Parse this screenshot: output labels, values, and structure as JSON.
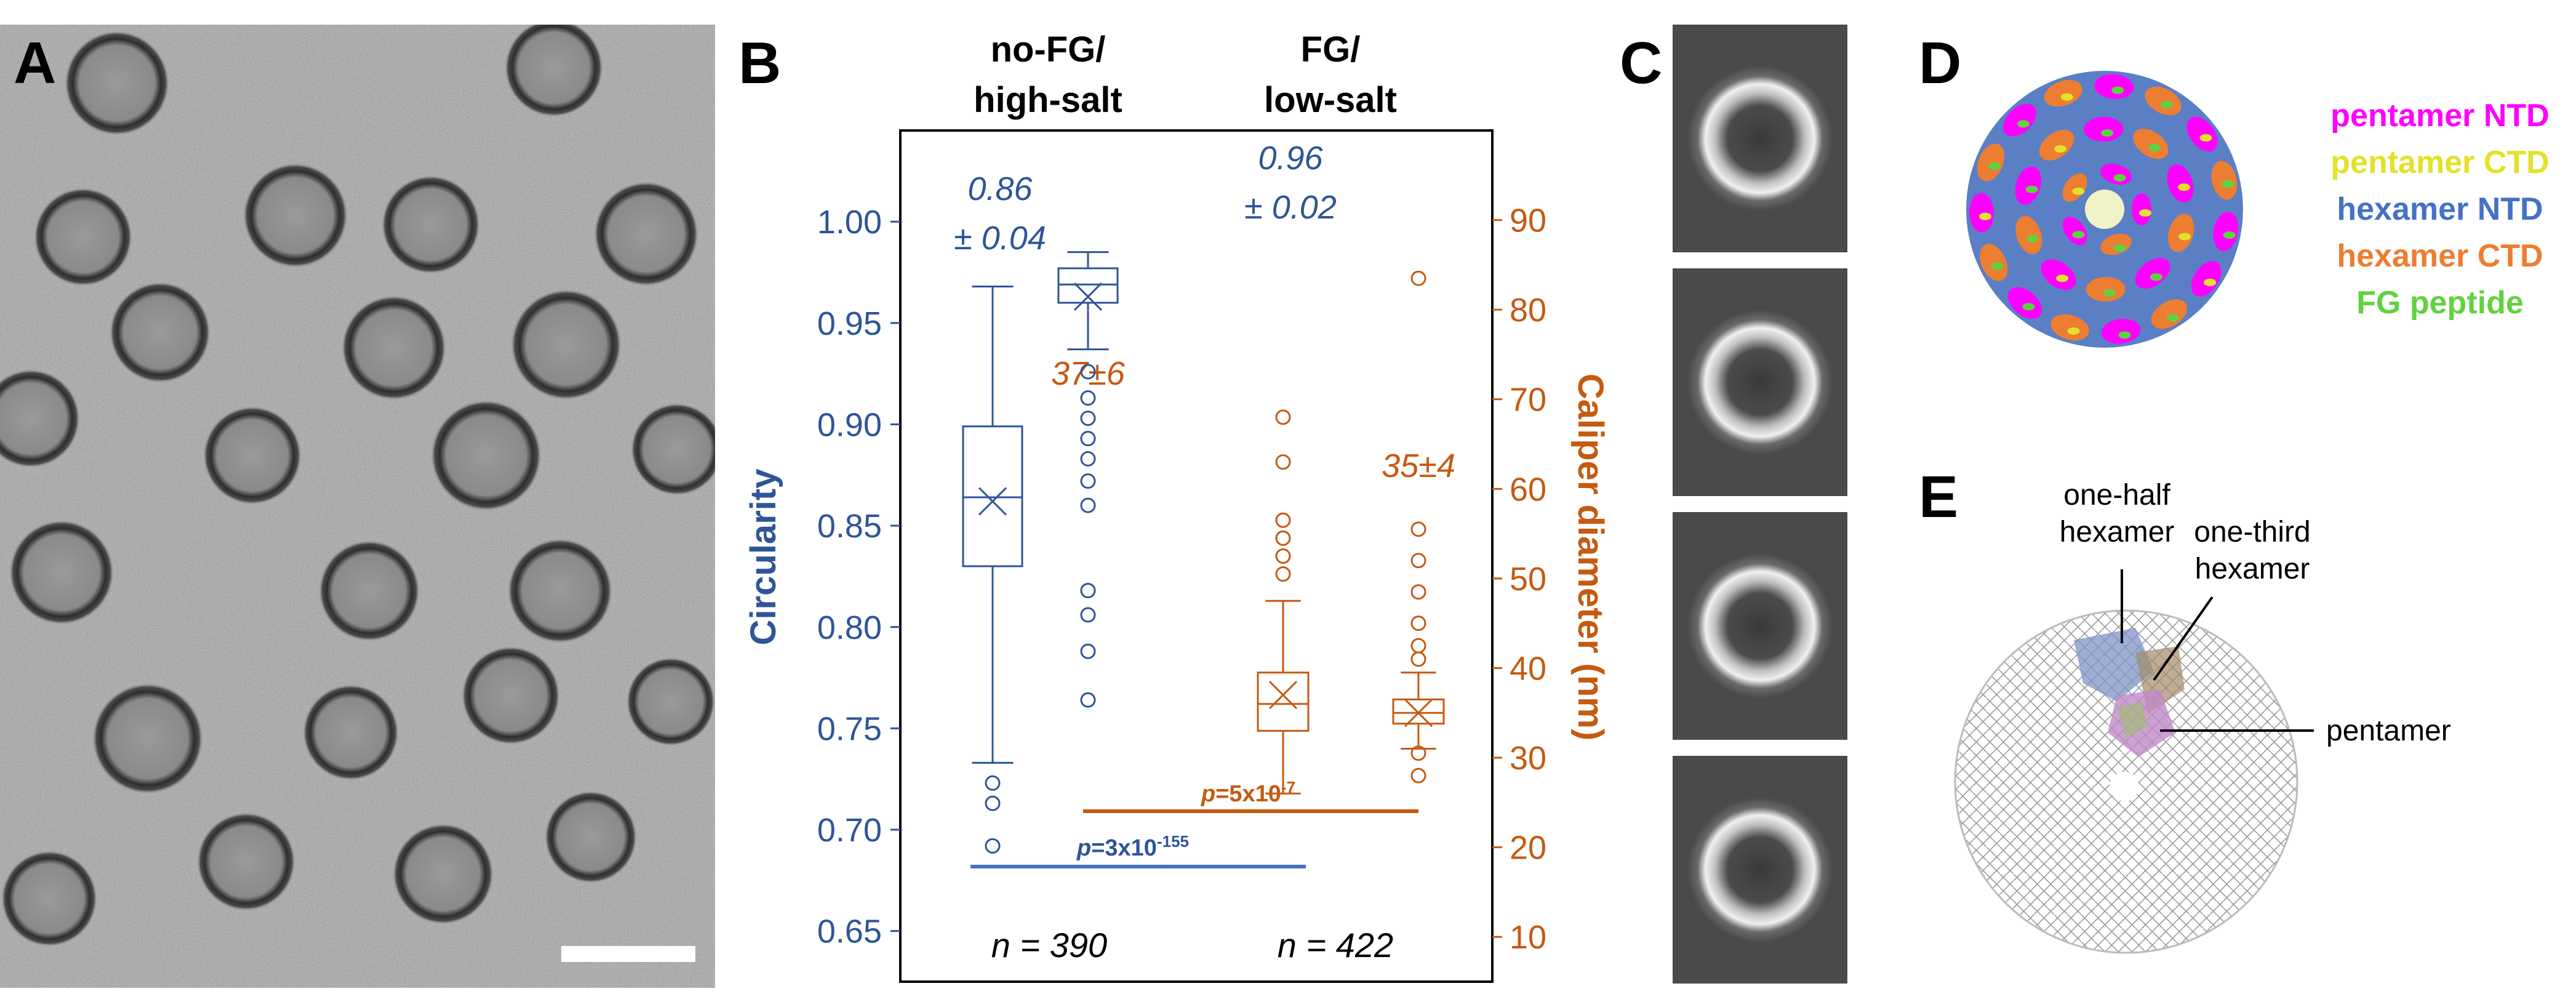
{
  "panels": {
    "a": "A",
    "b": "B",
    "c": "C",
    "d": "D",
    "e": "E"
  },
  "chart_data": {
    "type": "box",
    "groups": [
      "no-FG/\nhigh-salt",
      "FG/\nlow-salt"
    ],
    "group_titles": [
      [
        "no-FG/",
        "high-salt"
      ],
      [
        "FG/",
        "low-salt"
      ]
    ],
    "left_axis": {
      "label": "Circularity",
      "ylim": [
        0.625,
        1.045
      ],
      "ticks": [
        1.0,
        0.95,
        0.9,
        0.85,
        0.8,
        0.75,
        0.7,
        0.65
      ],
      "tick_labels": [
        "1.00",
        "0.95",
        "0.90",
        "0.85",
        "0.80",
        "0.75",
        "0.70",
        "0.65"
      ]
    },
    "right_axis": {
      "label": "Caliper diameter (nm)",
      "ylim": [
        5,
        100
      ],
      "ticks": [
        90,
        80,
        70,
        60,
        50,
        40,
        30,
        20,
        10
      ],
      "tick_labels": [
        "90",
        "80",
        "70",
        "60",
        "50",
        "40",
        "30",
        "20",
        "10"
      ]
    },
    "series": [
      {
        "name": "circularity no-FG/high-salt",
        "axis": "left",
        "color": "#2e5597",
        "whisker_low": 0.733,
        "q1": 0.83,
        "median": 0.864,
        "q3": 0.899,
        "whisker_high": 0.968,
        "mean": 0.862,
        "outliers": [
          0.723,
          0.713,
          0.692
        ],
        "label": [
          "0.86",
          "± 0.04"
        ]
      },
      {
        "name": "circularity FG/low-salt",
        "axis": "left",
        "color": "#2e5597",
        "whisker_low": 0.937,
        "q1": 0.96,
        "median": 0.969,
        "q3": 0.977,
        "whisker_high": 0.985,
        "mean": 0.963,
        "outliers": [
          0.926,
          0.913,
          0.903,
          0.893,
          0.883,
          0.872,
          0.86,
          0.818,
          0.806,
          0.788,
          0.764
        ],
        "label": [
          "0.96",
          "± 0.02"
        ]
      },
      {
        "name": "diameter no-FG/high-salt",
        "axis": "right",
        "color": "#c55a11",
        "whisker_low": 26,
        "q1": 33,
        "median": 36,
        "q3": 39.5,
        "whisker_high": 47.5,
        "mean": 37,
        "outliers": [
          50.5,
          52.5,
          54.5,
          56.5,
          63,
          68
        ],
        "label": [
          "37±6"
        ]
      },
      {
        "name": "diameter FG/low-salt",
        "axis": "right",
        "color": "#c55a11",
        "whisker_low": 31,
        "q1": 33.8,
        "median": 35,
        "q3": 36.5,
        "whisker_high": 39.5,
        "mean": 35,
        "outliers": [
          28,
          30.5,
          41,
          42.5,
          45,
          48.5,
          52,
          55.5,
          83.5
        ],
        "label": [
          "35±4"
        ]
      }
    ],
    "pvalues": [
      {
        "label": "p",
        "eq": "=3x10",
        "exp": "-155",
        "color": "#4472c4"
      },
      {
        "label": "p",
        "eq": "=5x10",
        "exp": "-7",
        "color": "#c55a11"
      }
    ],
    "n_labels": [
      "n = 390",
      "n = 422"
    ]
  },
  "legend_d": [
    {
      "label": "pentamer NTD",
      "color": "#ff00ff"
    },
    {
      "label": "pentamer CTD",
      "color": "#e2e22a"
    },
    {
      "label": "hexamer NTD",
      "color": "#4472c4"
    },
    {
      "label": "hexamer CTD",
      "color": "#ed7d31"
    },
    {
      "label": "FG peptide",
      "color": "#5fd33f"
    }
  ],
  "annotations_e": {
    "one_half": [
      "one-half",
      "hexamer"
    ],
    "one_third": [
      "one-third",
      "hexamer"
    ],
    "pentamer": "pentamer"
  }
}
